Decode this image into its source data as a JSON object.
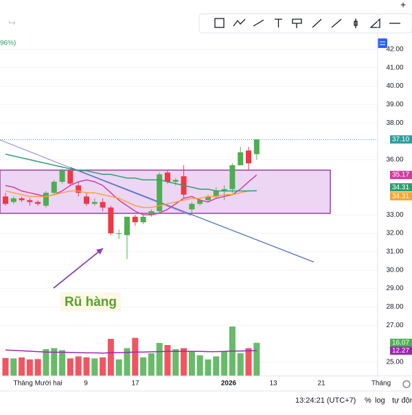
{
  "legend_text": "96%)",
  "chart_data": {
    "type": "candlestick",
    "annotation": "Rũ hàng",
    "x_labels": [
      "Tháng Mười hai",
      "9",
      "17",
      "2026",
      "13",
      "21",
      "Tháng"
    ],
    "open": [
      34.0,
      33.7,
      33.9,
      33.8,
      33.7,
      33.5,
      34.2,
      34.8,
      35.4,
      34.6,
      34.0,
      33.6,
      33.7,
      33.4,
      32.0,
      31.9,
      32.9,
      32.6,
      33.0,
      33.2,
      35.3,
      34.8,
      35.1,
      33.3,
      33.6,
      33.8,
      34.0,
      34.3,
      34.4,
      35.7,
      36.5,
      36.3
    ],
    "high": [
      34.2,
      34.0,
      34.0,
      33.9,
      33.8,
      34.3,
      34.9,
      35.5,
      35.5,
      34.8,
      34.2,
      33.9,
      33.9,
      33.5,
      32.2,
      32.9,
      33.0,
      33.0,
      33.3,
      35.3,
      35.4,
      35.0,
      35.7,
      33.7,
      33.9,
      34.1,
      34.5,
      34.6,
      35.8,
      36.7,
      36.7,
      37.1
    ],
    "low": [
      33.5,
      33.6,
      33.7,
      33.5,
      33.5,
      33.4,
      34.1,
      34.7,
      34.6,
      34.0,
      33.5,
      33.5,
      33.2,
      31.9,
      31.7,
      30.6,
      32.4,
      32.5,
      32.9,
      33.1,
      34.7,
      34.6,
      33.9,
      33.1,
      33.5,
      33.7,
      33.9,
      33.8,
      34.2,
      35.7,
      35.4,
      36.0
    ],
    "close": [
      33.6,
      33.9,
      33.8,
      33.7,
      33.6,
      34.2,
      34.8,
      35.4,
      34.7,
      34.2,
      33.6,
      33.7,
      33.4,
      32.0,
      32.0,
      32.9,
      32.6,
      32.9,
      33.2,
      35.2,
      34.8,
      34.9,
      34.1,
      33.6,
      33.8,
      34.0,
      34.3,
      34.4,
      35.7,
      36.4,
      35.8,
      37.1
    ],
    "up_color": "#4caf50",
    "down_color": "#f23645",
    "volume": [
      8.7,
      8.5,
      9,
      8,
      8.2,
      13,
      13.5,
      12.5,
      8.5,
      9.5,
      9,
      8.5,
      9,
      18,
      8,
      13.5,
      18.5,
      9,
      11,
      16,
      15,
      13,
      13.5,
      12,
      10,
      8,
      9.5,
      12,
      24,
      11,
      13.5,
      16.07
    ],
    "volume_ma": {
      "color": "#9c27b0",
      "values": [
        12.6,
        12.4,
        12.2,
        12.0,
        11.8,
        11.6,
        11.5,
        11.5,
        11.4,
        11.3,
        11.2,
        11.2,
        11.1,
        11.3,
        11.3,
        11.4,
        11.6,
        11.6,
        11.7,
        11.8,
        11.9,
        11.9,
        12.0,
        11.9,
        11.9,
        11.8,
        11.8,
        11.9,
        12.1,
        12.1,
        12.2,
        12.27
      ]
    },
    "series": [
      {
        "color": "#d63aa0",
        "values": [
          34.6,
          34.5,
          34.3,
          34.2,
          34.1,
          34.0,
          34.1,
          34.3,
          34.6,
          34.8,
          34.9,
          34.8,
          34.6,
          34.2,
          33.8,
          33.5,
          33.2,
          33.0,
          33.0,
          33.1,
          33.3,
          33.6,
          33.9,
          34.0,
          33.8,
          33.7,
          33.9,
          34.0,
          34.1,
          34.4,
          34.8,
          35.17
        ]
      },
      {
        "color": "#f7a531",
        "values": [
          34.3,
          34.2,
          34.1,
          34.0,
          34.0,
          34.0,
          34.1,
          34.2,
          34.3,
          34.3,
          34.2,
          34.2,
          34.1,
          34.0,
          33.9,
          33.7,
          33.5,
          33.4,
          33.4,
          33.5,
          33.6,
          33.7,
          33.8,
          33.9,
          33.9,
          34.0,
          34.0,
          34.1,
          34.1,
          34.2,
          34.3,
          34.31
        ]
      },
      {
        "color": "#2e9e6e",
        "values": [
          36.3,
          36.2,
          36.1,
          36.0,
          35.9,
          35.8,
          35.7,
          35.6,
          35.5,
          35.4,
          35.4,
          35.3,
          35.2,
          35.2,
          35.1,
          35.0,
          35.0,
          34.9,
          34.9,
          34.9,
          34.8,
          34.7,
          34.6,
          34.5,
          34.4,
          34.4,
          34.3,
          34.3,
          34.3,
          34.3,
          34.3,
          34.31
        ]
      }
    ],
    "ylim": [
      24.25,
      43
    ],
    "y2lim": [
      0,
      25
    ],
    "yticks": [
      {
        "value": 42,
        "label": "42.00"
      },
      {
        "value": 41,
        "label": "41.00"
      },
      {
        "value": 40,
        "label": "40.00"
      },
      {
        "value": 39,
        "label": "39.00"
      },
      {
        "value": 38,
        "label": "38.00"
      },
      {
        "value": 36,
        "label": "36.00"
      },
      {
        "value": 33,
        "label": "33.00"
      },
      {
        "value": 32,
        "label": "32.00"
      },
      {
        "value": 31,
        "label": "31.00"
      },
      {
        "value": 30,
        "label": "30.00"
      },
      {
        "value": 29,
        "label": "29.00"
      },
      {
        "value": 28,
        "label": "28.00"
      },
      {
        "value": 27,
        "label": "27.00"
      },
      {
        "value": 25,
        "label": "25.00"
      }
    ],
    "price_labels": [
      {
        "value": 37.1,
        "label": "37.10",
        "color": "#2e9e9e"
      },
      {
        "value": 35.17,
        "label": "35.17",
        "color": "#d63aa0"
      },
      {
        "value": 34.31,
        "label": "34.31",
        "color": "#2e9e6e"
      },
      {
        "value": 34.31,
        "label": "34.31",
        "color": "#f7a531"
      }
    ],
    "volume_labels": [
      {
        "value": 16.07,
        "label": "16.07",
        "color": "#4caf50"
      },
      {
        "value": 12.27,
        "label": "12.27",
        "color": "#9c27b0"
      }
    ],
    "grid": true
  },
  "status_bar": {
    "time": "13:24:21 (UTC+7)",
    "percent": "%",
    "log": "log",
    "auto": "tự độn"
  }
}
